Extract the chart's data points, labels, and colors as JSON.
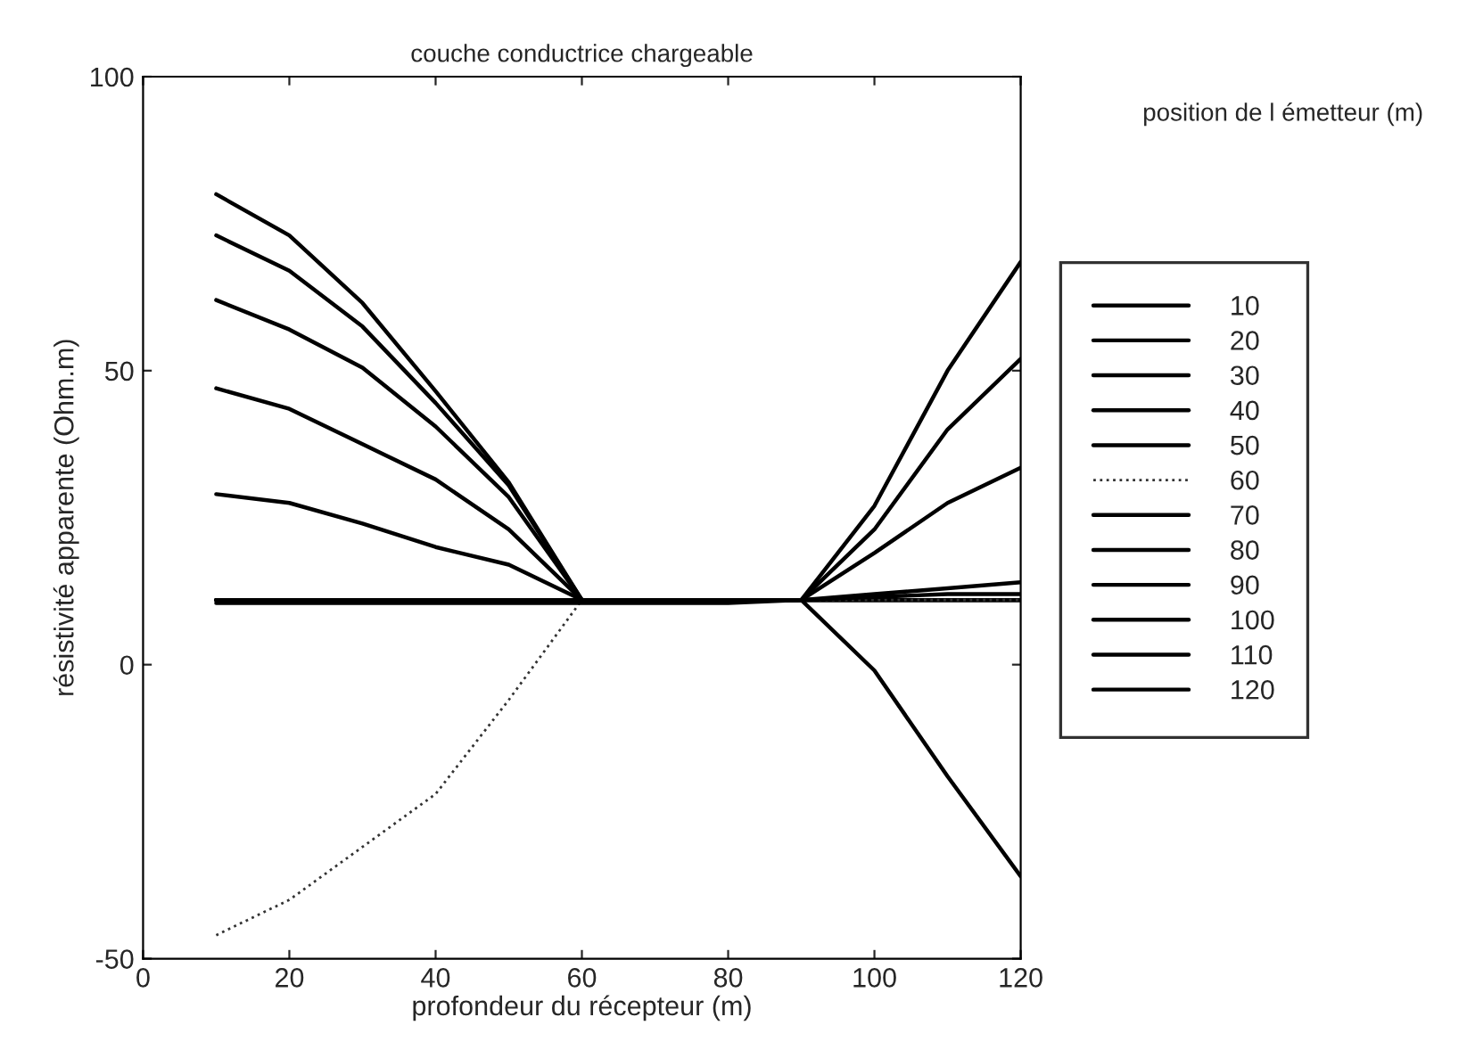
{
  "chart_data": {
    "type": "line",
    "title": "couche conductrice chargeable",
    "xlabel": "profondeur du récepteur (m)",
    "ylabel": "résistivité apparente (Ohm.m)",
    "legend_title": "position de l émetteur (m)",
    "legend": "right",
    "grid": false,
    "marker": "none",
    "x": [
      10,
      20,
      30,
      40,
      50,
      60,
      70,
      80,
      90,
      100,
      110,
      120
    ],
    "xlim": [
      0,
      120
    ],
    "xticks": [
      0,
      20,
      40,
      60,
      80,
      100,
      120
    ],
    "ylim": [
      -50,
      100
    ],
    "yticks": [
      -50,
      0,
      50,
      100
    ],
    "series": [
      {
        "name": "10",
        "color": "#000000",
        "values": [
          80,
          73,
          61.5,
          46.5,
          31,
          11,
          11,
          11,
          11,
          11,
          11,
          11
        ]
      },
      {
        "name": "20",
        "color": "#000000",
        "values": [
          73,
          67,
          57.5,
          44.5,
          30.5,
          11,
          11,
          11,
          11,
          11,
          11,
          11
        ]
      },
      {
        "name": "30",
        "color": "#000000",
        "values": [
          62,
          57,
          50.5,
          40.5,
          28.5,
          11,
          11,
          11,
          11,
          11,
          11,
          11
        ]
      },
      {
        "name": "40",
        "color": "#000000",
        "values": [
          47,
          43.5,
          37.5,
          31.5,
          23,
          11,
          11,
          11,
          11,
          11,
          11,
          11
        ]
      },
      {
        "name": "50",
        "color": "#000000",
        "values": [
          29,
          27.5,
          24,
          20,
          17,
          11,
          11,
          11,
          11,
          11,
          11,
          11
        ]
      },
      {
        "name": "60",
        "color": "#333333",
        "line_style": "dotted",
        "values": [
          -46,
          -40,
          -31,
          -22,
          -6,
          11,
          11,
          11,
          11,
          11,
          11,
          11
        ]
      },
      {
        "name": "70",
        "color": "#000000",
        "values": [
          10.5,
          10.5,
          10.5,
          10.5,
          10.5,
          10.5,
          10.5,
          10.5,
          11,
          11.5,
          12,
          12
        ]
      },
      {
        "name": "80",
        "color": "#000000",
        "values": [
          11,
          11,
          11,
          11,
          11,
          11,
          11,
          11,
          11,
          12,
          13,
          14
        ]
      },
      {
        "name": "90",
        "color": "#000000",
        "values": [
          11,
          11,
          11,
          11,
          11,
          11,
          11,
          11,
          11,
          -1,
          -19,
          -36
        ]
      },
      {
        "name": "100",
        "color": "#000000",
        "values": [
          11,
          11,
          11,
          11,
          11,
          11,
          11,
          11,
          11,
          19,
          27.5,
          33.5
        ]
      },
      {
        "name": "110",
        "color": "#000000",
        "values": [
          11,
          11,
          11,
          11,
          11,
          11,
          11,
          11,
          11,
          23,
          40,
          52
        ]
      },
      {
        "name": "120",
        "color": "#000000",
        "values": [
          11,
          11,
          11,
          11,
          11,
          11,
          11,
          11,
          11,
          27,
          50,
          68.5
        ]
      }
    ]
  }
}
